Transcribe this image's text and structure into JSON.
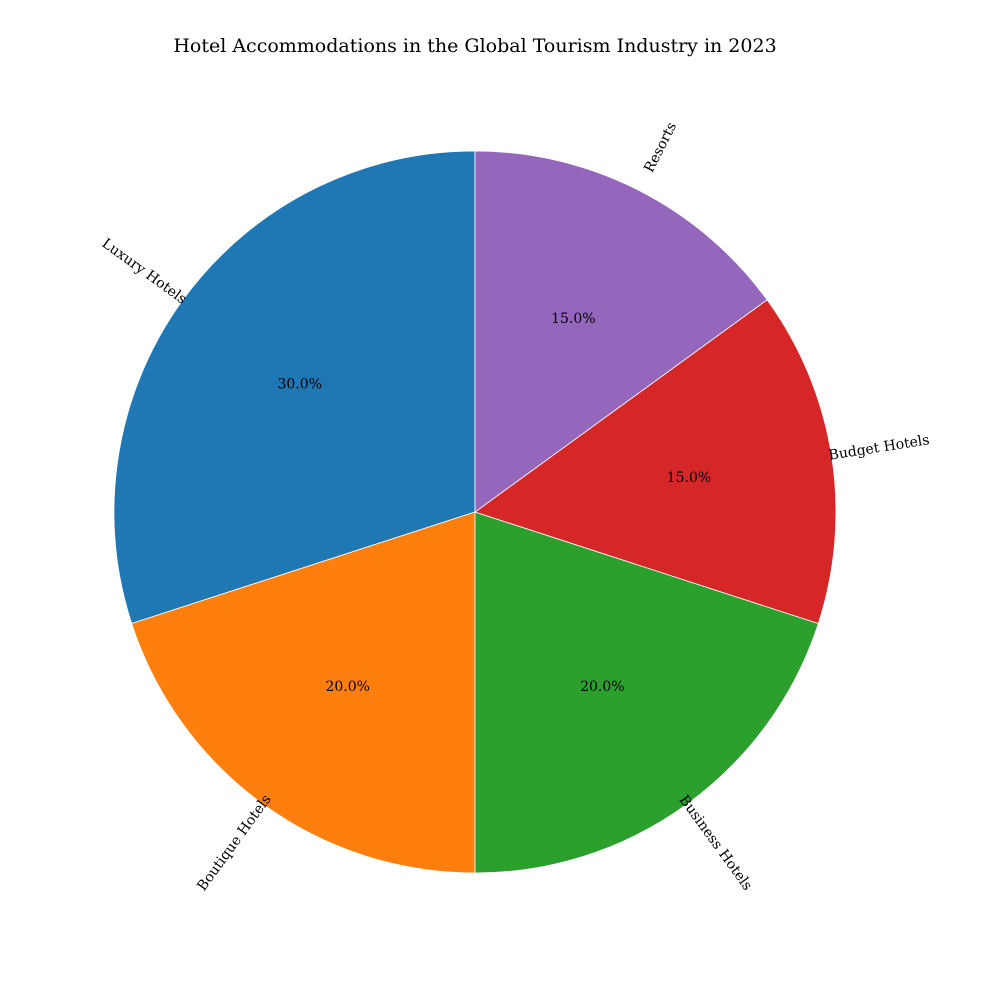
{
  "chart_data": {
    "type": "pie",
    "title": "Hotel Accommodations in the Global Tourism Industry in 2023",
    "start_angle_deg": 90,
    "direction": "counterclockwise",
    "slices": [
      {
        "label": "Luxury Hotels",
        "value": 30.0,
        "pct_text": "30.0%",
        "color": "#1f77b4"
      },
      {
        "label": "Boutique Hotels",
        "value": 20.0,
        "pct_text": "20.0%",
        "color": "#ff7f0e"
      },
      {
        "label": "Business Hotels",
        "value": 20.0,
        "pct_text": "20.0%",
        "color": "#2ca02c"
      },
      {
        "label": "Budget Hotels",
        "value": 15.0,
        "pct_text": "15.0%",
        "color": "#d62728"
      },
      {
        "label": "Resorts",
        "value": 15.0,
        "pct_text": "15.0%",
        "color": "#9467bd"
      }
    ]
  }
}
